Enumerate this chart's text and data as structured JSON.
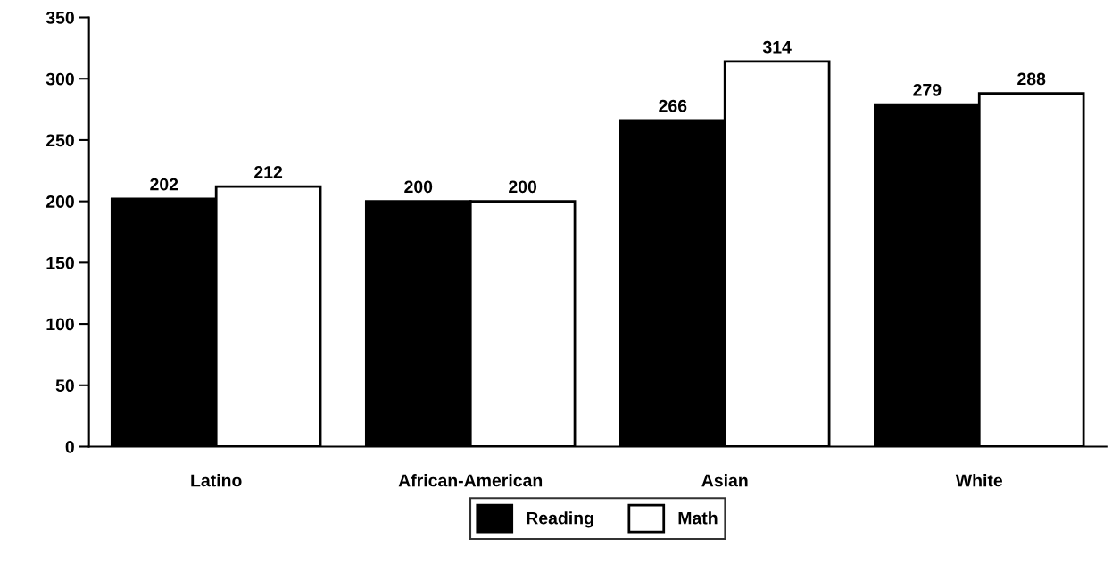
{
  "chart_data": {
    "type": "bar",
    "categories": [
      "Latino",
      "African-American",
      "Asian",
      "White"
    ],
    "series": [
      {
        "name": "Reading",
        "color": "#000000",
        "values": [
          202,
          200,
          266,
          279
        ]
      },
      {
        "name": "Math",
        "color": "#ffffff",
        "values": [
          212,
          200,
          314,
          288
        ]
      }
    ],
    "ylim": [
      0,
      350
    ],
    "yticks": [
      0,
      50,
      100,
      150,
      200,
      250,
      300,
      350
    ],
    "data_labels": true,
    "grid": false,
    "legend": "bottom"
  }
}
